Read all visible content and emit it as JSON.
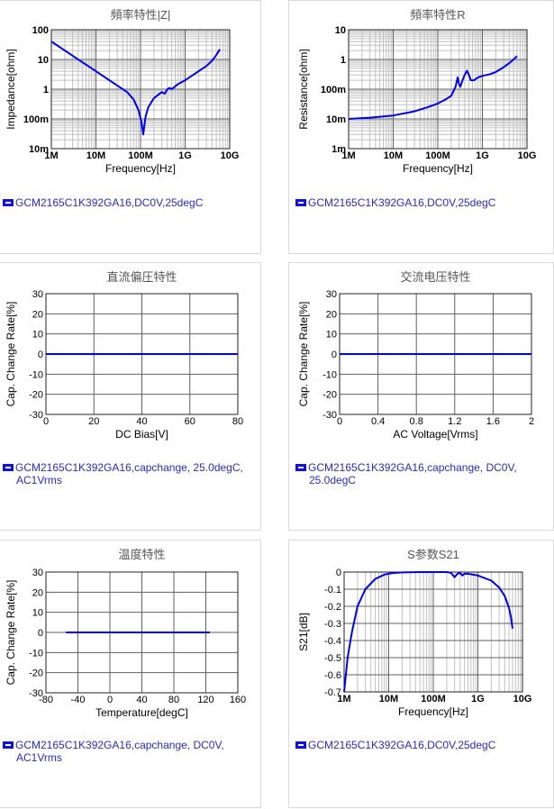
{
  "colors": {
    "curve": "#0000ee",
    "grid_major": "#606060",
    "grid_minor": "#c0c0c0",
    "legend_text": "#2929c8",
    "title": "#555555"
  },
  "chart_data": [
    {
      "type": "line",
      "title": "頻率特性|Z|",
      "xlabel": "Frequency[Hz]",
      "ylabel": "Impedance[ohm]",
      "xscale": "log",
      "yscale": "log",
      "xlim": [
        1000000,
        10000000000
      ],
      "ylim": [
        0.01,
        100
      ],
      "xticklabels": [
        "1M",
        "10M",
        "100M",
        "1G",
        "10G"
      ],
      "yticklabels": [
        "100",
        "10",
        "1",
        "100m",
        "10m"
      ],
      "legend": "GCM2165C1K392GA16,DC0V,25degC",
      "series": [
        {
          "x": [
            1000000,
            2000000,
            5000000,
            10000000,
            20000000,
            50000000,
            70000000,
            90000000,
            105000000,
            115000000,
            130000000,
            150000000,
            200000000,
            300000000,
            350000000,
            400000000,
            450000000,
            500000000,
            700000000,
            1000000000,
            1500000000,
            2000000000,
            3000000000,
            4000000000,
            5000000000,
            6000000000
          ],
          "y": [
            40,
            20,
            8,
            4,
            2,
            0.8,
            0.45,
            0.2,
            0.08,
            0.03,
            0.12,
            0.25,
            0.5,
            0.8,
            0.7,
            1.0,
            1.1,
            1.0,
            1.5,
            2,
            3,
            4,
            6,
            9,
            14,
            22
          ]
        }
      ]
    },
    {
      "type": "line",
      "title": "頻率特性R",
      "xlabel": "Frequency[Hz]",
      "ylabel": "Resistance[ohm]",
      "xscale": "log",
      "yscale": "log",
      "xlim": [
        1000000,
        10000000000
      ],
      "ylim": [
        0.001,
        10
      ],
      "xticklabels": [
        "1M",
        "10M",
        "100M",
        "1G",
        "10G"
      ],
      "yticklabels": [
        "10",
        "1",
        "100m",
        "10m",
        "1m"
      ],
      "legend": "GCM2165C1K392GA16,DC0V,25degC",
      "series": [
        {
          "x": [
            1000000,
            3000000,
            10000000,
            30000000,
            60000000,
            100000000,
            150000000,
            200000000,
            250000000,
            280000000,
            300000000,
            320000000,
            350000000,
            400000000,
            450000000,
            500000000,
            550000000,
            650000000,
            800000000,
            1000000000,
            1500000000,
            2000000000,
            3000000000,
            4000000000,
            5000000000,
            6000000000
          ],
          "y": [
            0.01,
            0.011,
            0.013,
            0.018,
            0.025,
            0.033,
            0.045,
            0.06,
            0.12,
            0.25,
            0.15,
            0.12,
            0.18,
            0.3,
            0.42,
            0.3,
            0.2,
            0.2,
            0.25,
            0.28,
            0.32,
            0.38,
            0.55,
            0.75,
            1.0,
            1.3
          ]
        }
      ]
    },
    {
      "type": "line",
      "title": "直流偏圧特性",
      "xlabel": "DC Bias[V]",
      "ylabel": "Cap. Change Rate[%]",
      "xlim": [
        0,
        80
      ],
      "ylim": [
        -30,
        30
      ],
      "xticks": [
        0,
        20,
        40,
        60,
        80
      ],
      "xticklabels": [
        "0",
        "20",
        "40",
        "60",
        "80"
      ],
      "yticks": [
        30,
        20,
        10,
        0,
        -10,
        -20,
        -30
      ],
      "yticklabels": [
        "30",
        "20",
        "10",
        "0",
        "-10",
        "-20",
        "-30"
      ],
      "legend": "GCM2165C1K392GA16,capchange, 25.0degC, AC1Vrms",
      "series": [
        {
          "x": [
            0,
            80
          ],
          "y": [
            0,
            0
          ]
        }
      ]
    },
    {
      "type": "line",
      "title": "交流电压特性",
      "xlabel": "AC Voltage[Vrms]",
      "ylabel": "Cap. Change Rate[%]",
      "xlim": [
        0,
        2
      ],
      "ylim": [
        -30,
        30
      ],
      "xticks": [
        0,
        0.4,
        0.8,
        1.2,
        1.6,
        2
      ],
      "xticklabels": [
        "0",
        "0.4",
        "0.8",
        "1.2",
        "1.6",
        "2"
      ],
      "yticks": [
        30,
        20,
        10,
        0,
        -10,
        -20,
        -30
      ],
      "yticklabels": [
        "30",
        "20",
        "10",
        "0",
        "-10",
        "-20",
        "-30"
      ],
      "legend": "GCM2165C1K392GA16,capchange, DC0V, 25.0degC",
      "series": [
        {
          "x": [
            0,
            2
          ],
          "y": [
            0,
            0
          ]
        }
      ]
    },
    {
      "type": "line",
      "title": "温度特性",
      "xlabel": "Temperature[degC]",
      "ylabel": "Cap. Change Rate[%]",
      "xlim": [
        -80,
        160
      ],
      "ylim": [
        -30,
        30
      ],
      "xticks": [
        -80,
        -40,
        0,
        40,
        80,
        120,
        160
      ],
      "xticklabels": [
        "-80",
        "-40",
        "0",
        "40",
        "80",
        "120",
        "160"
      ],
      "yticks": [
        30,
        20,
        10,
        0,
        -10,
        -20,
        -30
      ],
      "yticklabels": [
        "30",
        "20",
        "10",
        "0",
        "-10",
        "-20",
        "-30"
      ],
      "legend": "GCM2165C1K392GA16,capchange, DC0V, AC1Vrms",
      "series": [
        {
          "x": [
            -55,
            125
          ],
          "y": [
            0,
            0
          ]
        }
      ]
    },
    {
      "type": "line",
      "title": "S参数S21",
      "xlabel": "Frequency[Hz]",
      "ylabel": "S21[dB]",
      "xscale": "log",
      "xlim": [
        1000000,
        10000000000
      ],
      "ylim": [
        -0.7,
        0
      ],
      "xticklabels": [
        "1M",
        "10M",
        "100M",
        "1G",
        "10G"
      ],
      "yticks": [
        0,
        -0.1,
        -0.2,
        -0.3,
        -0.4,
        -0.5,
        -0.6,
        -0.7
      ],
      "yticklabels": [
        "0",
        "-0.1",
        "-0.2",
        "-0.3",
        "-0.4",
        "-0.5",
        "-0.6",
        "-0.7"
      ],
      "legend": "GCM2165C1K392GA16,DC0V,25degC",
      "series": [
        {
          "x": [
            1000000,
            1200000,
            1500000,
            2000000,
            3000000,
            5000000,
            8000000,
            12000000,
            20000000,
            50000000,
            200000000,
            250000000,
            300000000,
            350000000,
            400000000,
            450000000,
            500000000,
            600000000,
            1000000000,
            2000000000,
            3000000000,
            4000000000,
            5000000000,
            5500000000,
            6000000000
          ],
          "y": [
            -0.7,
            -0.5,
            -0.35,
            -0.2,
            -0.1,
            -0.04,
            -0.015,
            -0.006,
            -0.002,
            0,
            0,
            -0.005,
            -0.03,
            -0.01,
            -0.005,
            -0.02,
            -0.01,
            -0.01,
            -0.02,
            -0.05,
            -0.09,
            -0.14,
            -0.21,
            -0.26,
            -0.33
          ]
        }
      ]
    }
  ]
}
